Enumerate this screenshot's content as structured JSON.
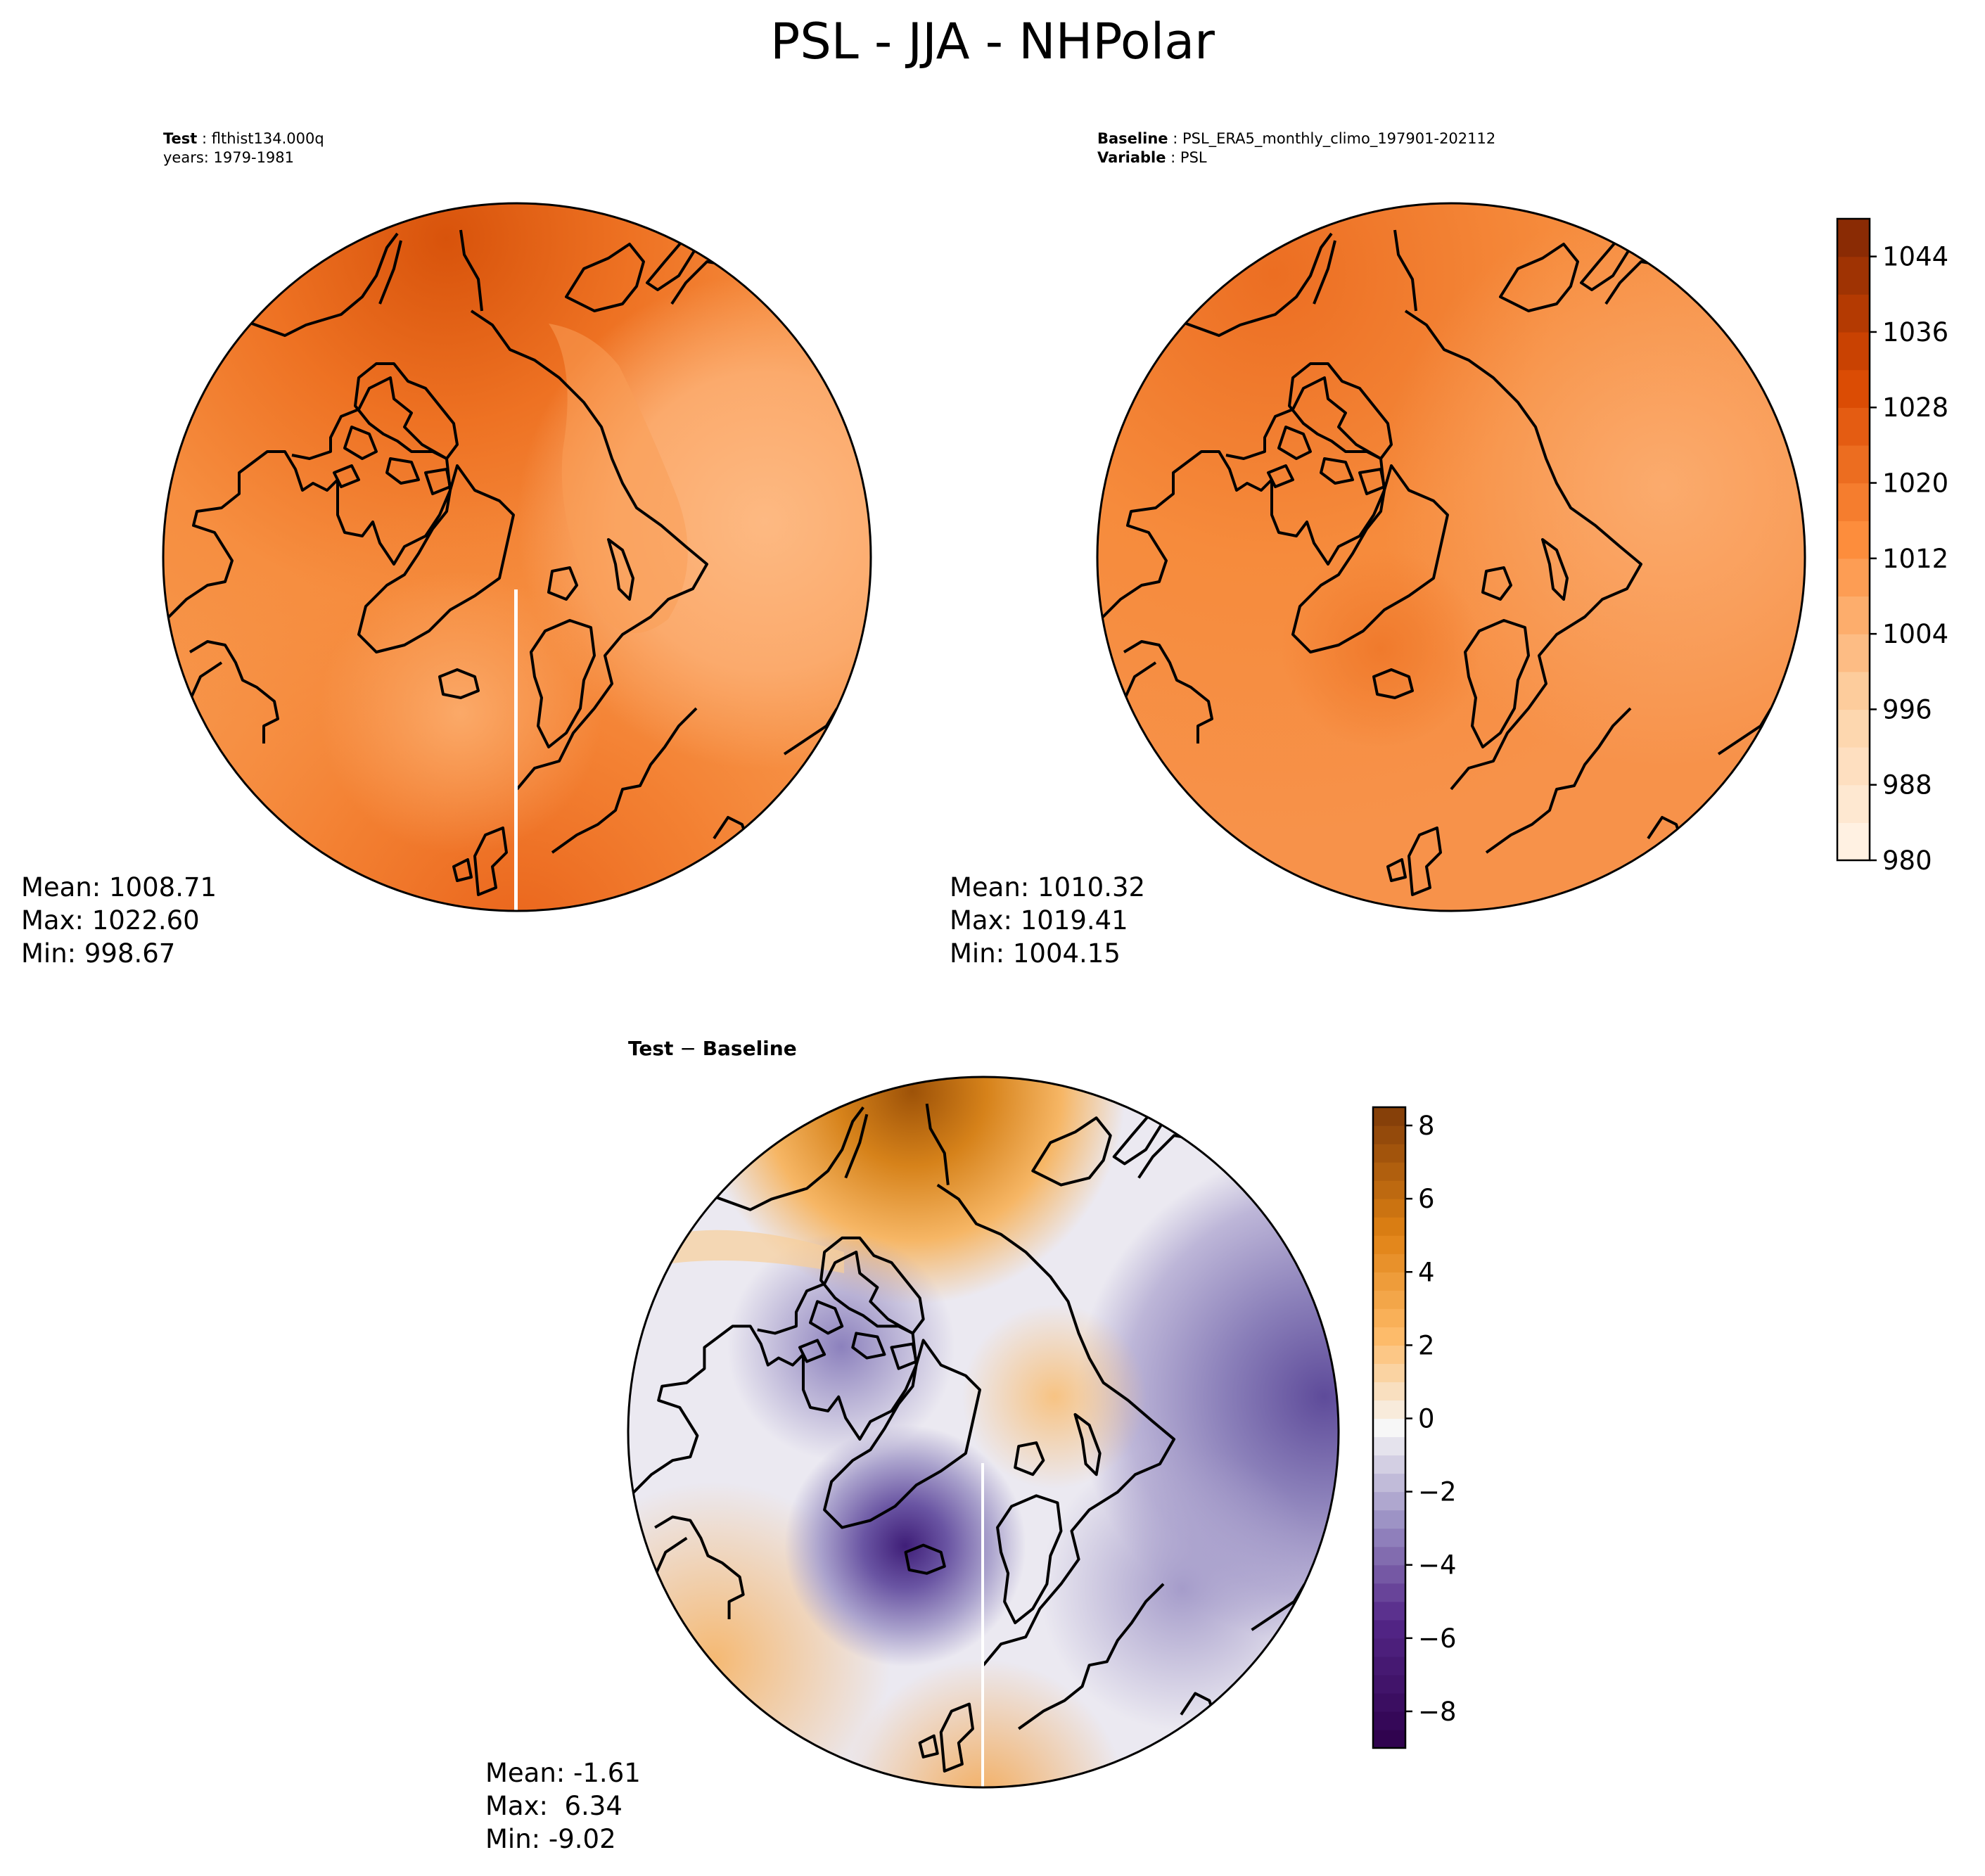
{
  "title": "PSL - JJA - NHPolar",
  "panels": {
    "test": {
      "header_label": "Test",
      "header_value": "flthist134.000q",
      "header_line2": "years: 1979-1981",
      "stats": {
        "mean": "Mean: 1008.71",
        "max": "Max: 1022.60",
        "min": "Min: 998.67"
      }
    },
    "baseline": {
      "header_label": "Baseline",
      "header_value": "PSL_ERA5_monthly_climo_197901-202112",
      "variable_label": "Variable",
      "variable_value": "PSL",
      "stats": {
        "mean": "Mean: 1010.32",
        "max": "Max: 1019.41",
        "min": "Min: 1004.15"
      }
    },
    "diff": {
      "title_part1": "Test",
      "title_sep": " − ",
      "title_part2": "Baseline",
      "stats": {
        "mean": "Mean: -1.61",
        "max": "Max:  6.34",
        "min": "Min: -9.02"
      }
    }
  },
  "chart_data": [
    {
      "type": "heatmap",
      "name": "Test",
      "projection": "north-polar-stereographic",
      "colormap": "Oranges",
      "colorbar_ticks": [
        "980",
        "988",
        "996",
        "1004",
        "1012",
        "1020",
        "1028",
        "1036",
        "1044"
      ],
      "colorbar_range": [
        980,
        1048
      ],
      "mean": 1008.71,
      "max": 1022.6,
      "min": 998.67
    },
    {
      "type": "heatmap",
      "name": "Baseline",
      "projection": "north-polar-stereographic",
      "colormap": "Oranges",
      "colorbar_ticks": [
        "980",
        "988",
        "996",
        "1004",
        "1012",
        "1020",
        "1028",
        "1036",
        "1044"
      ],
      "colorbar_range": [
        980,
        1048
      ],
      "mean": 1010.32,
      "max": 1019.41,
      "min": 1004.15
    },
    {
      "type": "heatmap",
      "name": "Test − Baseline",
      "projection": "north-polar-stereographic",
      "colormap": "PuOr_r",
      "colorbar_ticks": [
        "8",
        "6",
        "4",
        "2",
        "0",
        "−2",
        "−4",
        "−6",
        "−8"
      ],
      "colorbar_range": [
        -9,
        8.5
      ],
      "mean": -1.61,
      "max": 6.34,
      "min": -9.02
    }
  ]
}
